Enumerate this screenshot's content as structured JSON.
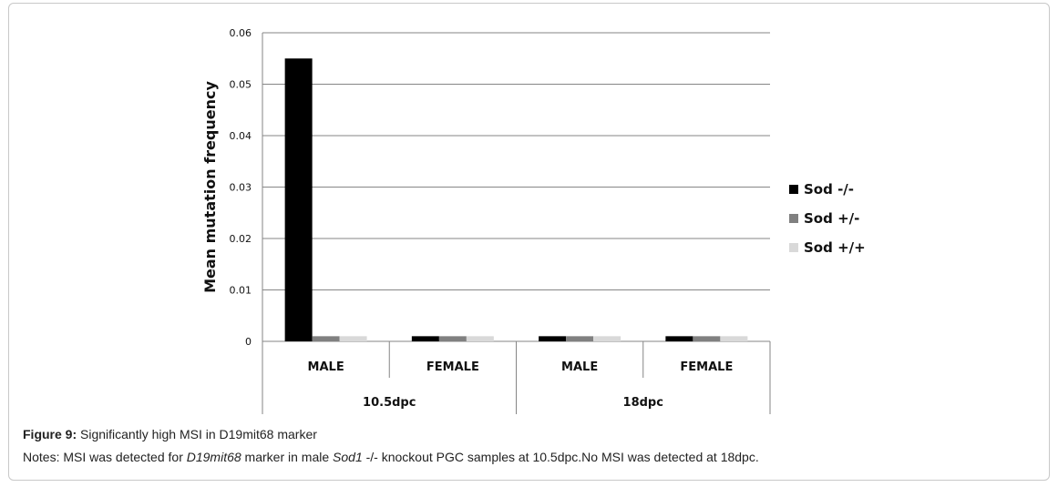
{
  "chart_data": {
    "type": "bar",
    "title": "",
    "ylabel": "Mean mutation frequency",
    "xlabel": "",
    "ylim": [
      0,
      0.06
    ],
    "yticks": [
      "0",
      "0.01",
      "0.02",
      "0.03",
      "0.04",
      "0.05",
      "0.06"
    ],
    "grid": true,
    "legend_position": "right",
    "categories": [
      "MALE",
      "FEMALE",
      "MALE",
      "FEMALE"
    ],
    "groups": [
      {
        "label": "10.5dpc",
        "categories": [
          "MALE",
          "FEMALE"
        ]
      },
      {
        "label": "18dpc",
        "categories": [
          "MALE",
          "FEMALE"
        ]
      }
    ],
    "series": [
      {
        "name": "Sod -/-",
        "color": "#000000",
        "values": [
          0.055,
          0.001,
          0.001,
          0.001
        ]
      },
      {
        "name": "Sod +/-",
        "color": "#808080",
        "values": [
          0.001,
          0.001,
          0.001,
          0.001
        ]
      },
      {
        "name": "Sod +/+",
        "color": "#d9d9d9",
        "values": [
          0.001,
          0.001,
          0.001,
          0.001
        ]
      }
    ]
  },
  "caption": {
    "label": "Figure 9:",
    "text": " Significantly high MSI in D19mit68 marker",
    "notes_prefix": "Notes: MSI was detected for ",
    "notes_marker": "D19mit68",
    "notes_mid": " marker in male ",
    "notes_gene": "Sod1",
    "notes_suffix": " -/- knockout PGC samples at 10.5dpc.No MSI was detected at 18dpc."
  }
}
